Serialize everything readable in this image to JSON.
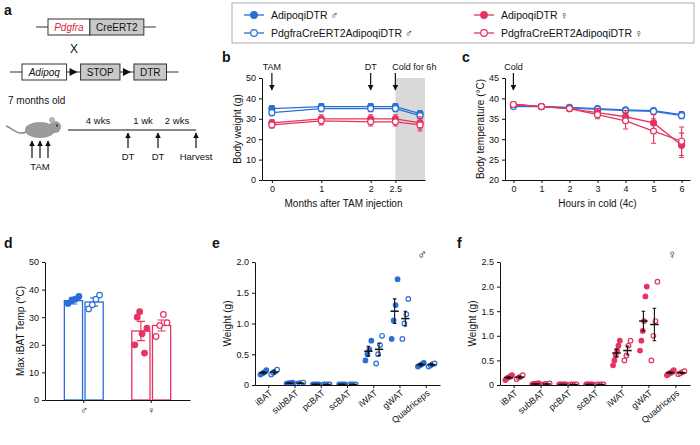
{
  "diagram": {
    "panel": "a",
    "constructs": [
      [
        {
          "text": "Pdgfra",
          "style": "gene",
          "color": "#d6283a"
        },
        {
          "text": "CreERT2",
          "style": "cassette"
        }
      ],
      [
        {
          "text": "Adipoq",
          "style": "gene"
        },
        {
          "text": "STOP",
          "style": "cassette",
          "floxed": true
        },
        {
          "text": "DTR",
          "style": "cassette"
        }
      ]
    ],
    "cross": "X",
    "age": "7 months old",
    "timeline": {
      "start": "TAM",
      "intervals": [
        "4 wks",
        "1 wk",
        "2 wks"
      ],
      "events": [
        "DT",
        "DT",
        "Harvest"
      ]
    }
  },
  "chart_data": [
    {
      "type": "line",
      "panel": "b",
      "x": [
        0,
        1,
        2,
        2.5,
        3
      ],
      "xlim": [
        -0.2,
        3.1
      ],
      "xticks": [
        0,
        1,
        2,
        2.5
      ],
      "ylim": [
        0,
        50
      ],
      "yticks": [
        0,
        10,
        20,
        30,
        40,
        50
      ],
      "x_label": "Months after TAM injection",
      "y_label": "Body weight (g)",
      "legend": "top",
      "shaded": [
        2.5,
        3.1
      ],
      "annotations": [
        {
          "text": "TAM",
          "x": 0
        },
        {
          "text": "DT",
          "x": 2
        },
        {
          "text": "Cold for 6h",
          "x": 2.5
        }
      ],
      "series": [
        {
          "name": "AdipoqiDTR ♂",
          "color": "#2b6fd6",
          "marker": "circle",
          "values": [
            35,
            36,
            36,
            36,
            32.5
          ],
          "errors": [
            1.5,
            1.5,
            1.5,
            1.5,
            1.5
          ]
        },
        {
          "name": "PdgfraCreERT2AdipoqiDTR ♂",
          "color": "#2b6fd6",
          "marker": "ring",
          "values": [
            33,
            35,
            35,
            35,
            31.5
          ],
          "errors": [
            1.5,
            1.5,
            1.5,
            1.5,
            1.5
          ]
        },
        {
          "name": "AdipoqiDTR ♀",
          "color": "#e6335f",
          "marker": "circle",
          "values": [
            28,
            30,
            30,
            30,
            28
          ],
          "errors": [
            1.5,
            2,
            2,
            2,
            3
          ]
        },
        {
          "name": "PdgfraCreERT2AdipoqiDTR ♀",
          "color": "#e6335f",
          "marker": "ring",
          "values": [
            27,
            29,
            28.5,
            28.5,
            27
          ],
          "errors": [
            1.5,
            2,
            2,
            2,
            3
          ]
        }
      ]
    },
    {
      "type": "line",
      "panel": "c",
      "x": [
        0,
        1,
        2,
        3,
        4,
        5,
        6
      ],
      "xlim": [
        -0.3,
        6.3
      ],
      "xticks": [
        0,
        1,
        2,
        3,
        4,
        5,
        6
      ],
      "ylim": [
        20,
        45
      ],
      "yticks": [
        20,
        25,
        30,
        35,
        40,
        45
      ],
      "x_label": "Hours in cold (4c)",
      "y_label": "Body temperature (°C)",
      "annotations": [
        {
          "text": "Cold",
          "x": 0
        }
      ],
      "series": [
        {
          "color": "#2b6fd6",
          "marker": "circle",
          "values": [
            38.5,
            38,
            37.8,
            37.5,
            37.2,
            37,
            36
          ],
          "errors": [
            0.4,
            0.4,
            0.4,
            0.5,
            0.5,
            0.6,
            0.8
          ]
        },
        {
          "color": "#2b6fd6",
          "marker": "ring",
          "values": [
            38,
            38,
            37.7,
            37.3,
            37,
            36.8,
            35.8
          ],
          "errors": [
            0.4,
            0.4,
            0.4,
            0.5,
            0.5,
            0.6,
            0.8
          ]
        },
        {
          "color": "#e6335f",
          "marker": "circle",
          "values": [
            38.5,
            38,
            37.5,
            36.5,
            35.5,
            34,
            28.5
          ],
          "errors": [
            0.4,
            0.5,
            0.6,
            1,
            1.5,
            2,
            3
          ]
        },
        {
          "color": "#e6335f",
          "marker": "ring",
          "values": [
            38.5,
            38,
            37.5,
            36,
            34.5,
            32,
            29.5
          ],
          "errors": [
            0.4,
            0.5,
            0.7,
            1,
            2,
            3,
            3.5
          ]
        }
      ]
    },
    {
      "type": "bar",
      "panel": "d",
      "categories": [
        "♂",
        "♀"
      ],
      "ylim": [
        0,
        50
      ],
      "yticks": [
        0,
        10,
        20,
        30,
        40,
        50
      ],
      "y_label": "Max iBAT Temp (°C)",
      "series": [
        {
          "colors": [
            "#2b6fd6",
            "#e6335f"
          ],
          "marker": "circle",
          "values": [
            36,
            25
          ],
          "errors": [
            1.2,
            3.5
          ],
          "points": [
            [
              35,
              36,
              36.5,
              37.5
            ],
            [
              20,
              30,
              32,
              24,
              17,
              26
            ]
          ]
        },
        {
          "colors": [
            "#2b6fd6",
            "#e6335f"
          ],
          "marker": "ring",
          "values": [
            35.5,
            27
          ],
          "errors": [
            1.5,
            2
          ],
          "points": [
            [
              33,
              34.5,
              36.5,
              38
            ],
            [
              23,
              27,
              31,
              28
            ]
          ]
        }
      ]
    },
    {
      "type": "dot",
      "panel": "e",
      "title": "♂",
      "categories": [
        "iBAT",
        "subBAT",
        "pcBAT",
        "scBAT",
        "iWAT",
        "gWAT",
        "Quadriceps"
      ],
      "ylim": [
        0,
        2
      ],
      "yticks": [
        0,
        0.5,
        {
          "value": 1,
          "label": "1.0"
        },
        1.5,
        {
          "value": 2,
          "label": "2.0"
        }
      ],
      "y_label": "Weight (g)",
      "series": [
        {
          "color": "#2b6fd6",
          "marker": "circle",
          "values": [
            0.2,
            0.03,
            0.01,
            0.01,
            0.55,
            1.2,
            0.33
          ],
          "errors": [
            0.02,
            0.005,
            0.003,
            0.003,
            0.08,
            0.2,
            0.02
          ],
          "points": [
            [
              0.17,
              0.19,
              0.21,
              0.24
            ],
            [
              0.02,
              0.03,
              0.03,
              0.04
            ],
            [
              0.01,
              0.01,
              0.01,
              0.01
            ],
            [
              0.01,
              0.01,
              0.01,
              0.01
            ],
            [
              0.4,
              0.5,
              0.58,
              0.72
            ],
            [
              0.75,
              1.05,
              1.3,
              1.72
            ],
            [
              0.3,
              0.32,
              0.34,
              0.36
            ]
          ]
        },
        {
          "color": "#2b6fd6",
          "marker": "ring",
          "values": [
            0.21,
            0.03,
            0.01,
            0.01,
            0.58,
            1.08,
            0.33
          ],
          "errors": [
            0.03,
            0.005,
            0.003,
            0.003,
            0.1,
            0.12,
            0.02
          ],
          "points": [
            [
              0.17,
              0.2,
              0.22,
              0.25
            ],
            [
              0.02,
              0.03,
              0.03,
              0.04
            ],
            [
              0.01,
              0.01,
              0.01,
              0.01
            ],
            [
              0.01,
              0.01,
              0.01,
              0.01
            ],
            [
              0.35,
              0.5,
              0.65,
              0.8
            ],
            [
              0.75,
              1,
              1.15,
              1.4
            ],
            [
              0.3,
              0.32,
              0.34,
              0.35
            ]
          ]
        }
      ]
    },
    {
      "type": "dot",
      "panel": "f",
      "title": "♀",
      "categories": [
        "iBAT",
        "subBAT",
        "pcBAT",
        "scBAT",
        "iWAT",
        "gWAT",
        "Quadriceps"
      ],
      "ylim": [
        0,
        2.5
      ],
      "yticks": [
        0,
        0.5,
        {
          "value": 1,
          "label": "1.0"
        },
        1.5,
        {
          "value": 2,
          "label": "2.0"
        },
        2.5
      ],
      "y_label": "Weight (g)",
      "series": [
        {
          "color": "#e6335f",
          "marker": "circle",
          "values": [
            0.15,
            0.02,
            0.01,
            0.01,
            0.65,
            1.3,
            0.25
          ],
          "errors": [
            0.015,
            0.003,
            0.002,
            0.002,
            0.08,
            0.2,
            0.015
          ],
          "points": [
            [
              0.1,
              0.13,
              0.15,
              0.16,
              0.18,
              0.2
            ],
            [
              0.01,
              0.02,
              0.02,
              0.02,
              0.03,
              0.03
            ],
            [
              0.01,
              0.01,
              0.01,
              0.01,
              0.01,
              0.01
            ],
            [
              0.01,
              0.01,
              0.01,
              0.01,
              0.01,
              0.01
            ],
            [
              0.4,
              0.5,
              0.6,
              0.7,
              0.8,
              0.9
            ],
            [
              0.7,
              0.9,
              1.1,
              1.3,
              1.8,
              2
            ],
            [
              0.2,
              0.22,
              0.24,
              0.25,
              0.27,
              0.3
            ]
          ]
        },
        {
          "color": "#e6335f",
          "marker": "ring",
          "values": [
            0.16,
            0.02,
            0.01,
            0.01,
            0.7,
            1.23,
            0.25
          ],
          "errors": [
            0.02,
            0.004,
            0.002,
            0.002,
            0.09,
            0.33,
            0.015
          ],
          "points": [
            [
              0.12,
              0.15,
              0.17,
              0.2
            ],
            [
              0.01,
              0.02,
              0.02,
              0.03
            ],
            [
              0.01,
              0.01,
              0.01,
              0.01
            ],
            [
              0.01,
              0.01,
              0.01,
              0.01
            ],
            [
              0.5,
              0.6,
              0.8,
              0.9
            ],
            [
              0.5,
              1,
              1.3,
              2.1
            ],
            [
              0.22,
              0.24,
              0.26,
              0.28
            ]
          ]
        }
      ]
    }
  ]
}
